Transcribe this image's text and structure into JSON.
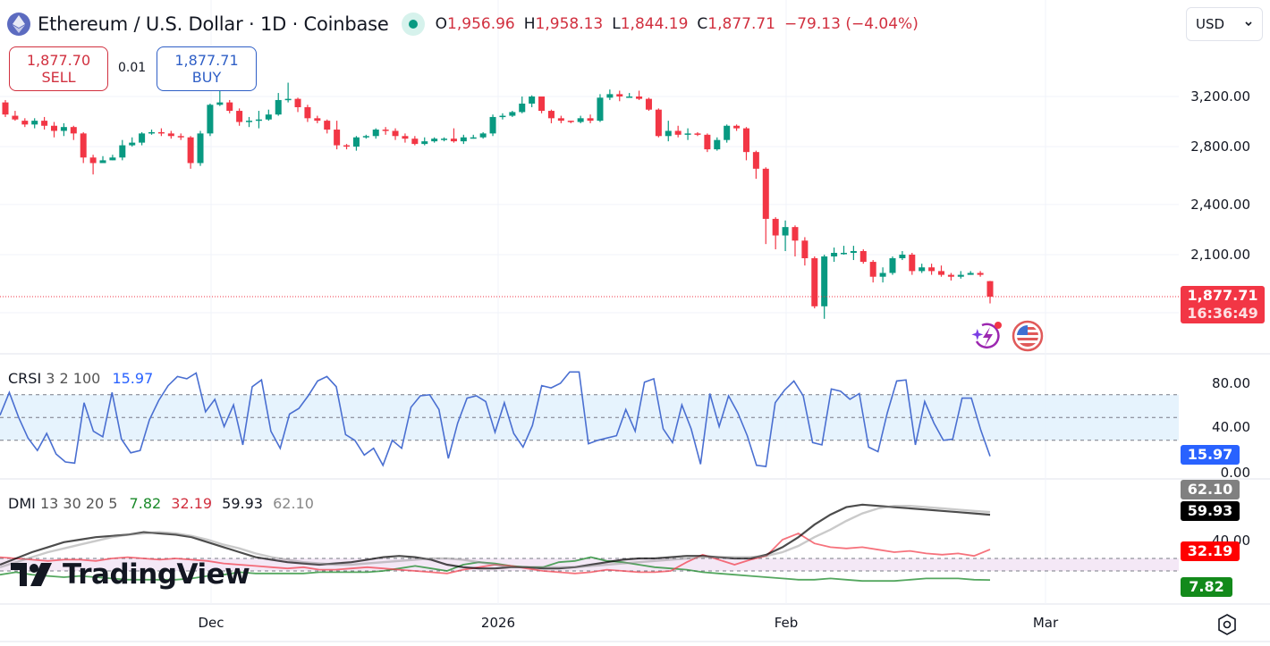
{
  "header": {
    "symbol_icon": "ethereum-icon",
    "title": "Ethereum / U.S. Dollar · 1D · Coinbase",
    "market_status": "market-open-dot",
    "ohlc": {
      "open_label": "O",
      "open": "1,956.96",
      "high_label": "H",
      "high": "1,958.13",
      "low_label": "L",
      "low": "1,844.19",
      "close_label": "C",
      "close": "1,877.71",
      "change": "−79.13 (−4.04%)"
    },
    "currency": "USD"
  },
  "trade": {
    "sell_price": "1,877.70",
    "sell_label": "SELL",
    "spread": "0.01",
    "buy_price": "1,877.71",
    "buy_label": "BUY"
  },
  "price_axis": {
    "labels": [
      "3,200.00",
      "2,800.00",
      "2,400.00",
      "2,100.00"
    ],
    "last_price": "1,877.71",
    "countdown": "16:36:49"
  },
  "crsi": {
    "name": "CRSI",
    "params": "3 2 100",
    "value": "15.97",
    "axis": [
      "80.00",
      "40.00",
      "0.00"
    ]
  },
  "dmi": {
    "name": "DMI",
    "params": "13 30 20 5",
    "values": [
      "7.82",
      "32.19",
      "59.93",
      "62.10"
    ],
    "axis": [
      "40.00"
    ]
  },
  "time_axis": [
    "Dec",
    "2026",
    "Feb",
    "Mar"
  ],
  "branding": "TradingView",
  "colors": {
    "up": "#089981",
    "down": "#f23645",
    "crsi": "#2962ff",
    "di_plus": "#1b8a2a",
    "di_minus": "#f23645",
    "adx": "#000000",
    "adxr": "#8a8a8a"
  },
  "chart_data": [
    {
      "type": "candlestick",
      "title": "Ethereum / U.S. Dollar · 1D · Coinbase",
      "xlabel": "",
      "ylabel": "USD",
      "x_ticks": [
        "Dec",
        "2026",
        "Feb",
        "Mar"
      ],
      "y_ticks": [
        3200,
        2800,
        2400,
        2100
      ],
      "ylim": [
        1750,
        3500
      ],
      "last": {
        "open": 1956.96,
        "high": 1958.13,
        "low": 1844.19,
        "close": 1877.71,
        "change": -79.13,
        "change_pct": -4.04
      },
      "candles": [
        [
          3150,
          3050,
          3170,
          3030
        ],
        [
          3040,
          3010,
          3080,
          3000
        ],
        [
          3000,
          2970,
          3020,
          2950
        ],
        [
          2970,
          3000,
          3020,
          2940
        ],
        [
          3000,
          2960,
          3030,
          2930
        ],
        [
          2960,
          2920,
          2990,
          2870
        ],
        [
          2920,
          2950,
          2980,
          2880
        ],
        [
          2950,
          2900,
          2960,
          2850
        ],
        [
          2900,
          2720,
          2910,
          2680
        ],
        [
          2720,
          2680,
          2740,
          2600
        ],
        [
          2680,
          2700,
          2730,
          2680
        ],
        [
          2700,
          2720,
          2740,
          2700
        ],
        [
          2720,
          2810,
          2850,
          2700
        ],
        [
          2810,
          2830,
          2870,
          2800
        ],
        [
          2830,
          2900,
          2910,
          2810
        ],
        [
          2900,
          2910,
          2930,
          2890
        ],
        [
          2910,
          2900,
          2940,
          2880
        ],
        [
          2900,
          2880,
          2920,
          2860
        ],
        [
          2880,
          2870,
          2900,
          2850
        ],
        [
          2870,
          2680,
          2880,
          2640
        ],
        [
          2680,
          2900,
          2920,
          2660
        ],
        [
          2900,
          3130,
          3140,
          2880
        ],
        [
          3130,
          3150,
          3290,
          3120
        ],
        [
          3150,
          3080,
          3170,
          3060
        ],
        [
          3080,
          2990,
          3100,
          2960
        ],
        [
          2990,
          3000,
          3030,
          2950
        ],
        [
          3000,
          3010,
          3080,
          2940
        ],
        [
          3010,
          3050,
          3090,
          3000
        ],
        [
          3050,
          3170,
          3230,
          3040
        ],
        [
          3170,
          3180,
          3320,
          3150
        ],
        [
          3180,
          3110,
          3190,
          3070
        ],
        [
          3110,
          3020,
          3130,
          2990
        ],
        [
          3020,
          3000,
          3040,
          2980
        ],
        [
          3000,
          2930,
          3010,
          2900
        ],
        [
          2930,
          2810,
          3000,
          2780
        ],
        [
          2810,
          2800,
          2820,
          2780
        ],
        [
          2800,
          2870,
          2880,
          2770
        ],
        [
          2870,
          2880,
          2890,
          2860
        ],
        [
          2880,
          2930,
          2940,
          2860
        ],
        [
          2930,
          2920,
          2950,
          2890
        ],
        [
          2920,
          2880,
          2940,
          2850
        ],
        [
          2880,
          2860,
          2900,
          2830
        ],
        [
          2860,
          2820,
          2880,
          2810
        ],
        [
          2820,
          2840,
          2870,
          2810
        ],
        [
          2840,
          2860,
          2870,
          2830
        ],
        [
          2860,
          2860,
          2870,
          2840
        ],
        [
          2860,
          2840,
          2940,
          2830
        ],
        [
          2840,
          2870,
          2890,
          2820
        ],
        [
          2870,
          2870,
          2890,
          2860
        ],
        [
          2870,
          2900,
          2910,
          2860
        ],
        [
          2900,
          3030,
          3050,
          2880
        ],
        [
          3030,
          3040,
          3060,
          3010
        ],
        [
          3040,
          3070,
          3080,
          3030
        ],
        [
          3070,
          3140,
          3200,
          3060
        ],
        [
          3140,
          3200,
          3210,
          3110
        ],
        [
          3200,
          3080,
          3200,
          3060
        ],
        [
          3080,
          3020,
          3090,
          2980
        ],
        [
          3020,
          3000,
          3040,
          2980
        ],
        [
          3000,
          2990,
          3000,
          2980
        ],
        [
          2990,
          3020,
          3040,
          2980
        ],
        [
          3020,
          3000,
          3050,
          2980
        ],
        [
          3000,
          3190,
          3220,
          2990
        ],
        [
          3190,
          3220,
          3260,
          3170
        ],
        [
          3220,
          3200,
          3250,
          3160
        ],
        [
          3200,
          3200,
          3230,
          3190
        ],
        [
          3200,
          3180,
          3250,
          3170
        ],
        [
          3180,
          3090,
          3190,
          3080
        ],
        [
          3090,
          2880,
          3100,
          2870
        ],
        [
          2880,
          2920,
          3000,
          2840
        ],
        [
          2920,
          2890,
          2960,
          2870
        ],
        [
          2890,
          2900,
          2940,
          2850
        ],
        [
          2900,
          2890,
          2910,
          2880
        ],
        [
          2890,
          2780,
          2900,
          2760
        ],
        [
          2780,
          2850,
          2870,
          2770
        ],
        [
          2850,
          2960,
          2970,
          2830
        ],
        [
          2960,
          2940,
          2970,
          2920
        ],
        [
          2940,
          2760,
          2950,
          2700
        ],
        [
          2760,
          2640,
          2770,
          2570
        ],
        [
          2640,
          2310,
          2650,
          2160
        ],
        [
          2310,
          2210,
          2320,
          2130
        ],
        [
          2210,
          2260,
          2300,
          2120
        ],
        [
          2260,
          2180,
          2270,
          2090
        ],
        [
          2180,
          2080,
          2200,
          2040
        ],
        [
          2080,
          1830,
          2090,
          1820
        ],
        [
          1830,
          2090,
          2100,
          1770
        ],
        [
          2090,
          2110,
          2140,
          2060
        ],
        [
          2110,
          2110,
          2150,
          2100
        ],
        [
          2110,
          2120,
          2150,
          2070
        ],
        [
          2120,
          2060,
          2130,
          2050
        ],
        [
          2060,
          1980,
          2070,
          1950
        ],
        [
          1980,
          2000,
          2030,
          1950
        ],
        [
          2000,
          2080,
          2090,
          1990
        ],
        [
          2080,
          2100,
          2120,
          2070
        ],
        [
          2100,
          2010,
          2110,
          1990
        ],
        [
          2010,
          2030,
          2050,
          2000
        ],
        [
          2030,
          2010,
          2050,
          1990
        ],
        [
          2010,
          1990,
          2040,
          1980
        ],
        [
          1990,
          1980,
          2000,
          1960
        ],
        [
          1980,
          1990,
          2010,
          1970
        ],
        [
          1990,
          2000,
          2010,
          1990
        ],
        [
          2000,
          1990,
          2010,
          1980
        ],
        [
          1956.96,
          1877.71,
          1958.13,
          1844.19
        ]
      ]
    },
    {
      "type": "line",
      "title": "CRSI 3 2 100",
      "y_ticks": [
        80,
        40,
        0
      ],
      "ylim": [
        0,
        100
      ],
      "bands": {
        "upper": 70,
        "middle": 50,
        "lower": 30
      },
      "last_value": 15.97,
      "series": [
        {
          "name": "CRSI",
          "values": [
            52,
            72,
            50,
            32,
            21,
            36,
            18,
            11,
            10,
            63,
            38,
            33,
            72,
            31,
            19,
            21,
            48,
            65,
            78,
            86,
            84,
            89,
            55,
            66,
            42,
            61,
            26,
            77,
            83,
            38,
            23,
            53,
            58,
            69,
            82,
            86,
            77,
            35,
            30,
            17,
            23,
            8,
            30,
            23,
            59,
            69,
            70,
            57,
            14,
            45,
            67,
            69,
            64,
            37,
            63,
            36,
            24,
            43,
            78,
            76,
            80,
            90,
            90,
            27,
            30,
            32,
            34,
            57,
            38,
            81,
            84,
            40,
            28,
            61,
            40,
            9,
            71,
            42,
            69,
            54,
            34,
            8,
            7,
            63,
            74,
            82,
            69,
            28,
            26,
            75,
            73,
            66,
            71,
            24,
            20,
            54,
            82,
            83,
            26,
            64,
            45,
            30,
            31,
            67,
            67,
            39,
            15.97
          ]
        }
      ]
    },
    {
      "type": "line",
      "title": "DMI 13 30 20 5",
      "y_ticks": [
        40
      ],
      "ylim": [
        0,
        80
      ],
      "bands": {
        "upper": 25,
        "lower": 15
      },
      "series": [
        {
          "name": "+DI",
          "last": 7.82,
          "values": [
            12,
            14,
            12,
            11,
            10,
            11,
            10,
            9,
            8,
            8,
            8,
            8,
            9,
            11,
            12,
            14,
            13,
            13,
            13,
            13,
            14,
            14,
            14,
            14,
            15,
            17,
            19,
            17,
            15,
            20,
            22,
            21,
            19,
            18,
            18,
            22,
            23,
            26,
            23,
            22,
            20,
            18,
            17,
            16,
            14,
            13,
            12,
            11,
            10,
            9,
            8,
            8,
            9,
            8,
            7,
            7,
            7,
            8,
            9,
            9,
            9,
            8,
            7.82
          ]
        },
        {
          "name": "−DI",
          "last": 32.19,
          "values": [
            26,
            25,
            24,
            23,
            24,
            24,
            23,
            25,
            26,
            25,
            24,
            25,
            24,
            23,
            21,
            20,
            19,
            18,
            17,
            18,
            16,
            16,
            17,
            18,
            17,
            16,
            15,
            14,
            13,
            16,
            18,
            20,
            19,
            17,
            15,
            14,
            13,
            14,
            16,
            15,
            14,
            14,
            15,
            22,
            28,
            24,
            20,
            24,
            27,
            40,
            45,
            37,
            34,
            33,
            34,
            32,
            30,
            31,
            29,
            28,
            29,
            27,
            32.19
          ]
        },
        {
          "name": "ADX",
          "last": 59.93,
          "values": [
            20,
            25,
            30,
            34,
            38,
            40,
            42,
            43,
            44,
            46,
            45,
            44,
            42,
            38,
            34,
            30,
            26,
            24,
            22,
            21,
            20,
            21,
            22,
            24,
            26,
            27,
            26,
            24,
            20,
            18,
            17,
            17,
            18,
            18,
            17,
            17,
            18,
            20,
            22,
            24,
            25,
            25,
            26,
            27,
            27,
            26,
            25,
            25,
            28,
            34,
            42,
            52,
            60,
            66,
            68,
            67,
            66,
            65,
            64,
            63,
            62,
            61,
            59.93
          ]
        },
        {
          "name": "ADXR",
          "last": 62.1,
          "values": [
            18,
            22,
            26,
            30,
            33,
            36,
            39,
            42,
            44,
            45,
            46,
            45,
            43,
            40,
            36,
            33,
            29,
            26,
            24,
            22,
            21,
            20,
            20,
            21,
            22,
            23,
            24,
            25,
            25,
            24,
            22,
            20,
            18,
            18,
            18,
            18,
            18,
            19,
            20,
            21,
            22,
            23,
            24,
            25,
            26,
            26,
            26,
            26,
            27,
            30,
            35,
            42,
            48,
            55,
            61,
            65,
            67,
            67,
            66,
            65,
            64,
            63,
            62.1
          ]
        }
      ]
    }
  ]
}
